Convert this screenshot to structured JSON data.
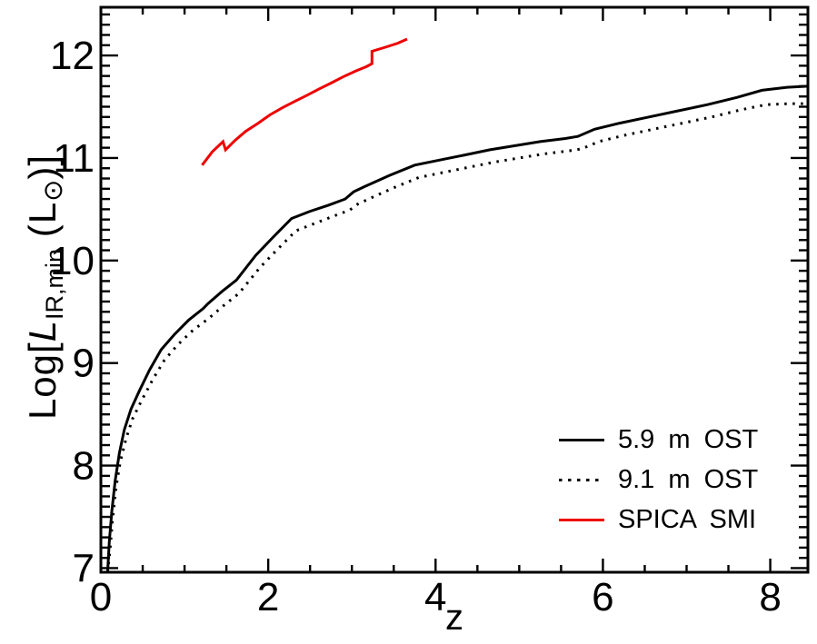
{
  "figure": {
    "x_axis_label": "z",
    "y_axis_label": {
      "prefix": "Log[",
      "variable": "L",
      "subscript": "IR,min",
      "open_paren": " (L",
      "sun": "⊙",
      "close": ")]"
    },
    "legend": {
      "items": [
        {
          "label": "5.9 m OST",
          "line": "solid",
          "color": "#000000"
        },
        {
          "label": "9.1 m OST",
          "line": "dotted",
          "color": "#000000"
        },
        {
          "label": "SPICA SMI",
          "line": "solid",
          "color": "#ee0000"
        }
      ]
    }
  },
  "chart_data": {
    "type": "line",
    "title": "",
    "xlabel": "z",
    "ylabel": "Log[L_IR,min (L_sun)]",
    "xlim": [
      0,
      8.45
    ],
    "ylim": [
      6.96,
      12.47
    ],
    "grid": false,
    "legend_position": "lower right",
    "x_ticks": {
      "major": [
        0,
        2,
        4,
        6,
        8
      ],
      "labels": [
        "0",
        "2",
        "4",
        "6",
        "8"
      ],
      "minor_step": 0.5
    },
    "y_ticks": {
      "major": [
        7,
        8,
        9,
        10,
        11,
        12
      ],
      "labels": [
        "7",
        "8",
        "9",
        "10",
        "11",
        "12"
      ],
      "minor_step": 0.1
    },
    "series": [
      {
        "name": "5.9 m OST",
        "style": "solid",
        "color": "#000000",
        "width": 3,
        "points": [
          [
            0.08,
            6.96
          ],
          [
            0.1,
            7.25
          ],
          [
            0.13,
            7.55
          ],
          [
            0.17,
            7.85
          ],
          [
            0.22,
            8.12
          ],
          [
            0.28,
            8.35
          ],
          [
            0.36,
            8.55
          ],
          [
            0.46,
            8.73
          ],
          [
            0.58,
            8.93
          ],
          [
            0.72,
            9.13
          ],
          [
            0.88,
            9.28
          ],
          [
            1.05,
            9.42
          ],
          [
            1.22,
            9.53
          ],
          [
            1.28,
            9.58
          ],
          [
            1.45,
            9.7
          ],
          [
            1.62,
            9.81
          ],
          [
            1.85,
            10.05
          ],
          [
            2.05,
            10.22
          ],
          [
            2.28,
            10.41
          ],
          [
            2.5,
            10.48
          ],
          [
            2.72,
            10.54
          ],
          [
            2.92,
            10.6
          ],
          [
            3.02,
            10.67
          ],
          [
            3.15,
            10.72
          ],
          [
            3.45,
            10.83
          ],
          [
            3.75,
            10.93
          ],
          [
            4.05,
            10.98
          ],
          [
            4.35,
            11.03
          ],
          [
            4.65,
            11.08
          ],
          [
            4.95,
            11.12
          ],
          [
            5.25,
            11.16
          ],
          [
            5.55,
            11.19
          ],
          [
            5.7,
            11.21
          ],
          [
            5.9,
            11.28
          ],
          [
            6.2,
            11.34
          ],
          [
            6.55,
            11.4
          ],
          [
            6.9,
            11.46
          ],
          [
            7.25,
            11.52
          ],
          [
            7.6,
            11.59
          ],
          [
            7.9,
            11.66
          ],
          [
            8.2,
            11.69
          ],
          [
            8.45,
            11.7
          ]
        ]
      },
      {
        "name": "9.1 m OST",
        "style": "dotted",
        "color": "#000000",
        "width": 3,
        "points": [
          [
            0.08,
            6.96
          ],
          [
            0.11,
            7.18
          ],
          [
            0.14,
            7.48
          ],
          [
            0.18,
            7.78
          ],
          [
            0.23,
            8.03
          ],
          [
            0.3,
            8.26
          ],
          [
            0.38,
            8.46
          ],
          [
            0.49,
            8.64
          ],
          [
            0.62,
            8.84
          ],
          [
            0.76,
            9.03
          ],
          [
            0.92,
            9.18
          ],
          [
            1.1,
            9.32
          ],
          [
            1.28,
            9.43
          ],
          [
            1.48,
            9.57
          ],
          [
            1.65,
            9.68
          ],
          [
            1.9,
            9.93
          ],
          [
            2.1,
            10.1
          ],
          [
            2.33,
            10.29
          ],
          [
            2.55,
            10.36
          ],
          [
            2.77,
            10.43
          ],
          [
            2.97,
            10.49
          ],
          [
            3.07,
            10.55
          ],
          [
            3.2,
            10.6
          ],
          [
            3.5,
            10.71
          ],
          [
            3.8,
            10.81
          ],
          [
            4.1,
            10.86
          ],
          [
            4.4,
            10.91
          ],
          [
            4.7,
            10.96
          ],
          [
            5.0,
            11.0
          ],
          [
            5.3,
            11.04
          ],
          [
            5.6,
            11.07
          ],
          [
            5.75,
            11.09
          ],
          [
            5.95,
            11.16
          ],
          [
            6.25,
            11.22
          ],
          [
            6.6,
            11.28
          ],
          [
            6.95,
            11.34
          ],
          [
            7.3,
            11.4
          ],
          [
            7.65,
            11.47
          ],
          [
            7.95,
            11.52
          ],
          [
            8.25,
            11.53
          ],
          [
            8.45,
            11.53
          ]
        ]
      },
      {
        "name": "SPICA SMI",
        "style": "solid",
        "color": "#ee0000",
        "width": 3,
        "points": [
          [
            1.21,
            10.93
          ],
          [
            1.33,
            11.06
          ],
          [
            1.46,
            11.16
          ],
          [
            1.49,
            11.08
          ],
          [
            1.6,
            11.17
          ],
          [
            1.73,
            11.26
          ],
          [
            1.88,
            11.34
          ],
          [
            2.02,
            11.42
          ],
          [
            2.17,
            11.49
          ],
          [
            2.31,
            11.55
          ],
          [
            2.46,
            11.61
          ],
          [
            2.6,
            11.67
          ],
          [
            2.75,
            11.73
          ],
          [
            2.89,
            11.79
          ],
          [
            3.05,
            11.85
          ],
          [
            3.17,
            11.89
          ],
          [
            3.24,
            11.92
          ],
          [
            3.24,
            12.04
          ],
          [
            3.4,
            12.08
          ],
          [
            3.55,
            12.12
          ],
          [
            3.66,
            12.16
          ]
        ]
      }
    ]
  }
}
